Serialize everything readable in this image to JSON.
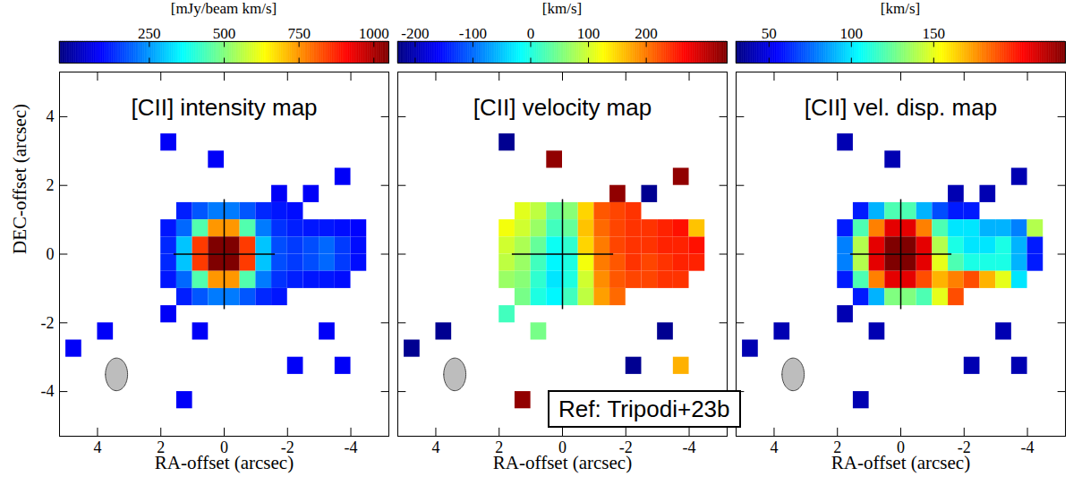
{
  "chart_data": [
    {
      "type": "heatmap",
      "title": "[CII] intensity map",
      "colorbar_label": "[mJy/beam km/s]",
      "color": "jet",
      "xlabel": "RA-offset (arcsec)",
      "ylabel": "DEC-offset (arcsec)",
      "xlim": [
        5.2,
        -5.2
      ],
      "ylim": [
        -5.3,
        5.3
      ],
      "xticks": [
        4,
        2,
        0,
        -2,
        -4
      ],
      "yticks": [
        -4,
        -2,
        0,
        2,
        4
      ],
      "clim": [
        -50,
        1050
      ],
      "cticks": [
        250,
        500,
        750,
        1000
      ],
      "x": [
        1.75,
        1.25,
        0.75,
        0.25,
        -0.25,
        -0.75,
        -1.25,
        -1.75,
        -2.25,
        -2.75,
        -3.25,
        -3.75,
        -4.25
      ],
      "y": [
        1.25,
        0.75,
        0.25,
        -0.25,
        -0.75,
        -1.25
      ],
      "values": [
        [
          null,
          120,
          180,
          220,
          220,
          180,
          130,
          110,
          100,
          null,
          null,
          null,
          null
        ],
        [
          110,
          200,
          450,
          750,
          750,
          450,
          220,
          140,
          120,
          110,
          110,
          100,
          null
        ],
        [
          130,
          300,
          850,
          1050,
          1050,
          850,
          300,
          170,
          150,
          170,
          200,
          150,
          100
        ],
        [
          130,
          300,
          850,
          1050,
          1050,
          850,
          300,
          170,
          150,
          170,
          200,
          150,
          100
        ],
        [
          110,
          200,
          450,
          750,
          750,
          450,
          220,
          140,
          120,
          110,
          110,
          100,
          null
        ],
        [
          null,
          120,
          180,
          220,
          220,
          180,
          130,
          110,
          null,
          null,
          null,
          null,
          null
        ]
      ],
      "isolated": [
        [
          1.75,
          3.25,
          80
        ],
        [
          0.25,
          2.75,
          80
        ],
        [
          -1.75,
          1.75,
          80
        ],
        [
          -2.75,
          1.75,
          80
        ],
        [
          -3.75,
          2.25,
          80
        ],
        [
          -4.25,
          0.75,
          90
        ],
        [
          0.75,
          -2.25,
          80
        ],
        [
          1.25,
          -4.25,
          80
        ],
        [
          -3.25,
          -2.25,
          80
        ],
        [
          -3.75,
          -3.25,
          80
        ],
        [
          -2.25,
          -3.25,
          80
        ],
        [
          3.75,
          -2.25,
          80
        ],
        [
          4.75,
          -2.75,
          80
        ],
        [
          1.75,
          -1.75,
          80
        ]
      ],
      "crosshair": {
        "x": [
          1.6,
          -1.6
        ],
        "y": [
          -1.6,
          1.6
        ]
      },
      "beam": {
        "x": 3.4,
        "y": -3.5,
        "major": 0.95,
        "minor": 0.7
      }
    },
    {
      "type": "heatmap",
      "title": "[CII] velocity map",
      "colorbar_label": "[km/s]",
      "color": "jet",
      "xlabel": "RA-offset (arcsec)",
      "tick_labels": "x",
      "xlim": [
        5.2,
        -5.2
      ],
      "ylim": [
        -5.3,
        5.3
      ],
      "xticks": [
        4,
        2,
        0,
        -2,
        -4
      ],
      "yticks": [
        -4,
        -2,
        0,
        2,
        4
      ],
      "clim": [
        -230,
        340
      ],
      "cticks": [
        -200,
        -100,
        0,
        100,
        200
      ],
      "x": [
        1.75,
        1.25,
        0.75,
        0.25,
        -0.25,
        -0.75,
        -1.25,
        -1.75,
        -2.25,
        -2.75,
        -3.25,
        -3.75,
        -4.25
      ],
      "y": [
        1.25,
        0.75,
        0.25,
        -0.25,
        -0.75,
        -1.25
      ],
      "values": [
        [
          null,
          110,
          90,
          40,
          60,
          150,
          220,
          230,
          240,
          null,
          null,
          null,
          null
        ],
        [
          120,
          100,
          70,
          20,
          40,
          160,
          210,
          230,
          240,
          240,
          250,
          260,
          null
        ],
        [
          100,
          80,
          40,
          -10,
          10,
          150,
          200,
          230,
          240,
          240,
          250,
          250,
          260
        ],
        [
          90,
          70,
          20,
          -20,
          0,
          120,
          200,
          220,
          240,
          230,
          240,
          250,
          250
        ],
        [
          70,
          60,
          10,
          -30,
          0,
          100,
          190,
          220,
          230,
          230,
          240,
          240,
          null
        ],
        [
          null,
          50,
          0,
          -20,
          20,
          90,
          180,
          210,
          null,
          null,
          null,
          null,
          null
        ]
      ],
      "isolated": [
        [
          1.75,
          3.25,
          -220
        ],
        [
          0.25,
          2.75,
          330
        ],
        [
          -1.75,
          1.75,
          330
        ],
        [
          -2.75,
          1.75,
          -220
        ],
        [
          -3.75,
          2.25,
          330
        ],
        [
          -4.25,
          0.75,
          160
        ],
        [
          0.75,
          -2.25,
          50
        ],
        [
          1.25,
          -4.25,
          330
        ],
        [
          -3.25,
          -2.25,
          -220
        ],
        [
          -3.75,
          -3.25,
          170
        ],
        [
          -2.25,
          -3.25,
          -220
        ],
        [
          3.75,
          -2.25,
          -220
        ],
        [
          4.75,
          -2.75,
          -220
        ],
        [
          1.75,
          -1.75,
          20
        ]
      ],
      "crosshair": {
        "x": [
          1.6,
          -1.6
        ],
        "y": [
          -1.6,
          1.6
        ]
      },
      "beam": {
        "x": 3.4,
        "y": -3.5,
        "major": 0.95,
        "minor": 0.7
      }
    },
    {
      "type": "heatmap",
      "title": "[CII] vel. disp. map",
      "colorbar_label": "[km/s]",
      "color": "jet",
      "xlabel": "RA-offset (arcsec)",
      "tick_labels": "x",
      "xlim": [
        5.2,
        -5.2
      ],
      "ylim": [
        -5.3,
        5.3
      ],
      "xticks": [
        4,
        2,
        0,
        -2,
        -4
      ],
      "yticks": [
        -4,
        -2,
        0,
        2,
        4
      ],
      "clim": [
        30,
        230
      ],
      "cticks": [
        50,
        100,
        150
      ],
      "x": [
        1.75,
        1.25,
        0.75,
        0.25,
        -0.25,
        -0.75,
        -1.25,
        -1.75,
        -2.25,
        -2.75,
        -3.25,
        -3.75,
        -4.25
      ],
      "y": [
        1.25,
        0.75,
        0.25,
        -0.25,
        -0.75,
        -1.25
      ],
      "values": [
        [
          null,
          60,
          90,
          120,
          120,
          90,
          70,
          60,
          60,
          null,
          null,
          null,
          null
        ],
        [
          60,
          120,
          180,
          210,
          210,
          180,
          120,
          100,
          100,
          90,
          90,
          80,
          null
        ],
        [
          80,
          140,
          210,
          230,
          230,
          210,
          140,
          110,
          100,
          100,
          110,
          90,
          60
        ],
        [
          80,
          140,
          210,
          230,
          230,
          210,
          150,
          120,
          110,
          110,
          110,
          90,
          60
        ],
        [
          60,
          120,
          180,
          210,
          210,
          190,
          170,
          180,
          190,
          170,
          150,
          100,
          null
        ],
        [
          null,
          60,
          90,
          130,
          130,
          120,
          150,
          190,
          null,
          null,
          null,
          null,
          null
        ]
      ],
      "isolated": [
        [
          1.75,
          3.25,
          40
        ],
        [
          0.25,
          2.75,
          40
        ],
        [
          -1.75,
          1.75,
          40
        ],
        [
          -2.75,
          1.75,
          40
        ],
        [
          -3.75,
          2.25,
          40
        ],
        [
          -4.25,
          0.75,
          140
        ],
        [
          0.75,
          -2.25,
          40
        ],
        [
          1.25,
          -4.25,
          40
        ],
        [
          -3.25,
          -2.25,
          40
        ],
        [
          -3.75,
          -3.25,
          40
        ],
        [
          -2.25,
          -3.25,
          40
        ],
        [
          3.75,
          -2.25,
          40
        ],
        [
          4.75,
          -2.75,
          40
        ],
        [
          1.75,
          -1.75,
          40
        ]
      ],
      "crosshair": {
        "x": [
          1.6,
          -1.6
        ],
        "y": [
          -1.6,
          1.6
        ]
      },
      "beam": {
        "x": 3.4,
        "y": -3.5,
        "major": 0.95,
        "minor": 0.7
      }
    }
  ],
  "annotation": "Ref: Tripodi+23b"
}
